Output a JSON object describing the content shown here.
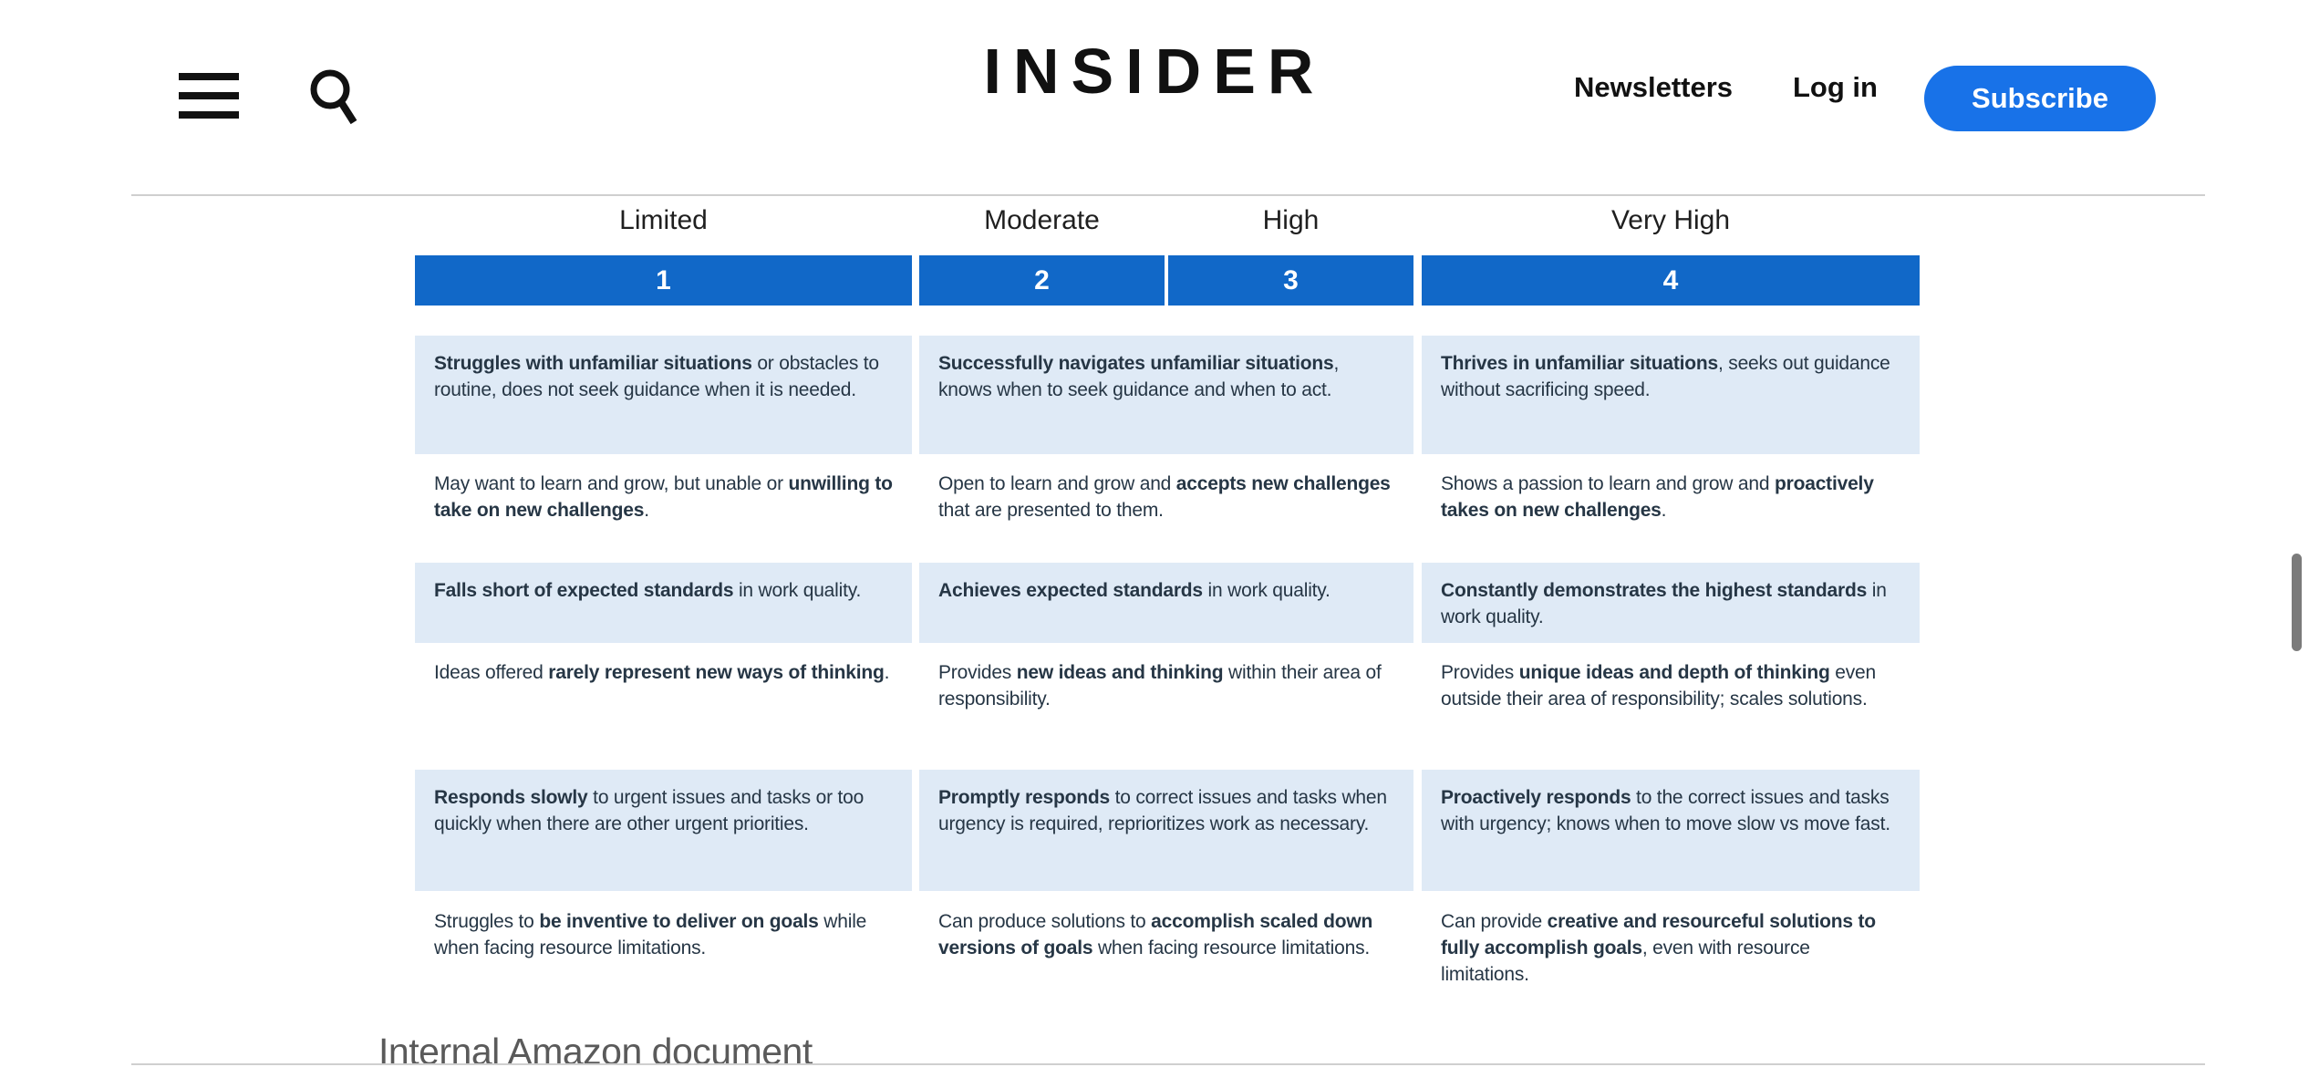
{
  "header": {
    "logo": "INSIDER",
    "nav": [
      {
        "label": "Newsletters"
      },
      {
        "label": "Log in"
      }
    ],
    "subscribe_label": "Subscribe",
    "icons": [
      "menu-icon",
      "search-icon"
    ]
  },
  "colors": {
    "subscribe-blue": "#1872e8",
    "bar-blue": "#1168c8",
    "row-shade": "#dfeaf6",
    "cell-ink": "#263645",
    "label-ink": "#1f1f1f",
    "caption-gray": "#5a5a5a",
    "divider-gray": "#cfcfcf",
    "scrollbar-gray": "#7b7b7b"
  },
  "table": {
    "column_labels": [
      "Limited",
      "Moderate",
      "High",
      "Very High"
    ],
    "rating_numbers": [
      "1",
      "2",
      "3",
      "4"
    ],
    "rows": [
      {
        "shaded": true,
        "cells": [
          [
            {
              "t": "Struggles with unfamiliar situations",
              "b": true
            },
            {
              "t": " or obstacles to routine, does not seek guidance when it is needed."
            }
          ],
          [
            {
              "t": "Successfully navigates unfamiliar situations",
              "b": true
            },
            {
              "t": ", knows when to seek guidance and when to act."
            }
          ],
          [
            {
              "t": "Thrives in unfamiliar situations",
              "b": true
            },
            {
              "t": ", seeks out guidance without sacrificing speed."
            }
          ]
        ]
      },
      {
        "shaded": false,
        "cells": [
          [
            {
              "t": "May want to learn and grow, but unable or "
            },
            {
              "t": "unwilling to take on new challenges",
              "b": true
            },
            {
              "t": "."
            }
          ],
          [
            {
              "t": "Open to learn and grow and "
            },
            {
              "t": "accepts new challenges",
              "b": true
            },
            {
              "t": " that are presented to them."
            }
          ],
          [
            {
              "t": "Shows a passion to learn and grow and "
            },
            {
              "t": "proactively takes on new challenges",
              "b": true
            },
            {
              "t": "."
            }
          ]
        ]
      },
      {
        "shaded": true,
        "cells": [
          [
            {
              "t": "Falls short of expected standards",
              "b": true
            },
            {
              "t": " in work quality."
            }
          ],
          [
            {
              "t": "Achieves expected standards",
              "b": true
            },
            {
              "t": " in work quality."
            }
          ],
          [
            {
              "t": "Constantly demonstrates the highest standards",
              "b": true
            },
            {
              "t": " in work quality."
            }
          ]
        ]
      },
      {
        "shaded": false,
        "cells": [
          [
            {
              "t": "Ideas offered "
            },
            {
              "t": "rarely represent new ways of thinking",
              "b": true
            },
            {
              "t": "."
            }
          ],
          [
            {
              "t": "Provides "
            },
            {
              "t": "new ideas and thinking",
              "b": true
            },
            {
              "t": " within their area of responsibility."
            }
          ],
          [
            {
              "t": "Provides "
            },
            {
              "t": "unique ideas and depth of thinking",
              "b": true
            },
            {
              "t": " even outside their area of responsibility; scales solutions."
            }
          ]
        ]
      },
      {
        "shaded": true,
        "cells": [
          [
            {
              "t": "Responds slowly",
              "b": true
            },
            {
              "t": " to urgent issues and tasks or too quickly when there are other urgent priorities."
            }
          ],
          [
            {
              "t": "Promptly responds",
              "b": true
            },
            {
              "t": " to correct issues and tasks when urgency is required, reprioritizes work as necessary."
            }
          ],
          [
            {
              "t": "Proactively responds",
              "b": true
            },
            {
              "t": " to the correct issues and tasks with urgency; knows when to move slow vs move fast."
            }
          ]
        ]
      },
      {
        "shaded": false,
        "cells": [
          [
            {
              "t": "Struggles to "
            },
            {
              "t": "be inventive to deliver on goals",
              "b": true
            },
            {
              "t": " while when facing resource limitations."
            }
          ],
          [
            {
              "t": "Can produce solutions to "
            },
            {
              "t": "accomplish scaled down versions of goals",
              "b": true
            },
            {
              "t": " when facing resource limitations."
            }
          ],
          [
            {
              "t": "Can provide "
            },
            {
              "t": "creative and resourceful solutions to fully accomplish goals",
              "b": true
            },
            {
              "t": ", even with resource limitations."
            }
          ]
        ]
      }
    ]
  },
  "caption": "Internal Amazon document"
}
